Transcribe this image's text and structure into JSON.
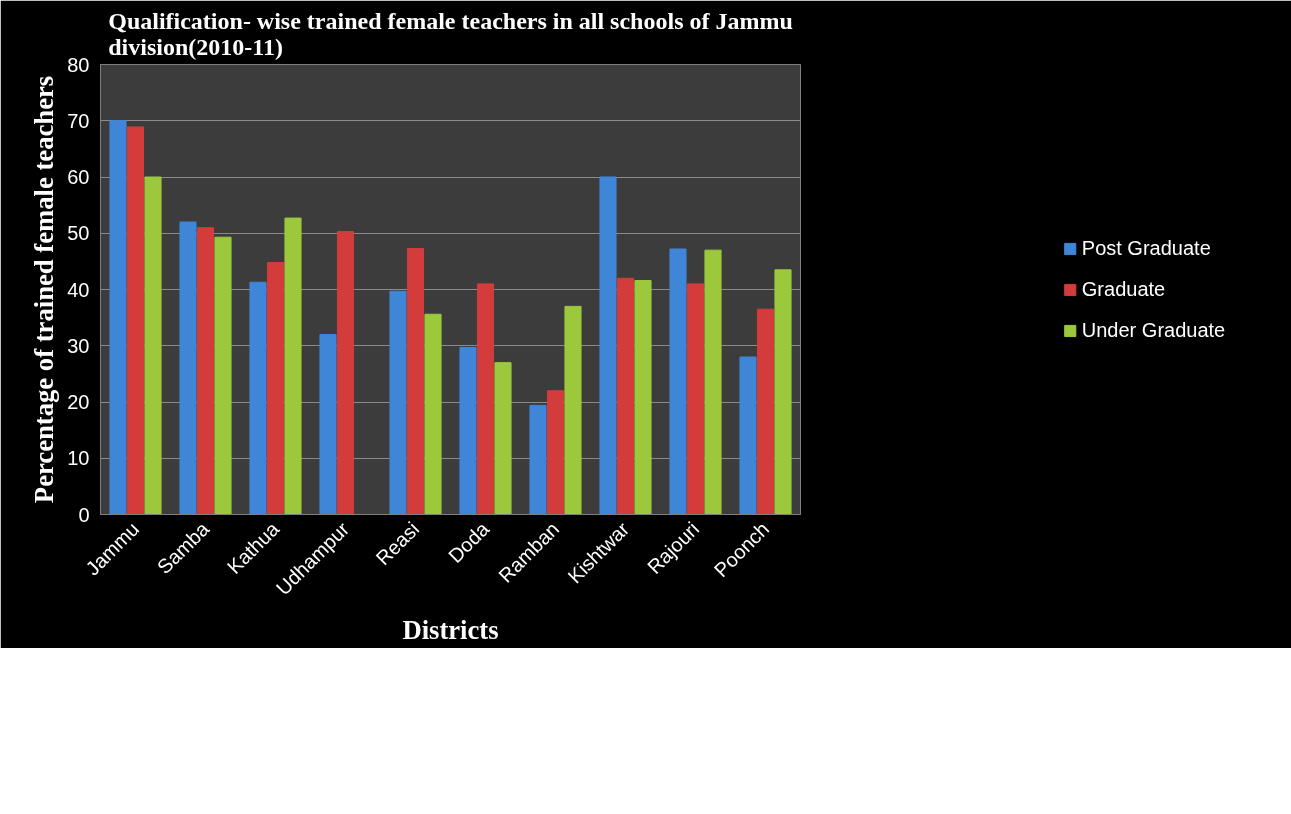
{
  "chart_data": {
    "type": "bar",
    "title": "Qualification- wise trained female teachers in all schools of Jammu division(2010-11)",
    "xlabel": "Districts",
    "ylabel": "Percentage of trained female teachers",
    "categories": [
      "Jammu",
      "Samba",
      "Kathua",
      "Udhampur",
      "Reasi",
      "Doda",
      "Ramban",
      "Kishtwar",
      "Rajouri",
      "Poonch"
    ],
    "series": [
      {
        "name": "Post Graduate",
        "color": "#3f86d8",
        "values": [
          70,
          52,
          41.3,
          32,
          39.7,
          29.7,
          19.4,
          60,
          47.2,
          28
        ]
      },
      {
        "name": "Graduate",
        "color": "#d43c3c",
        "values": [
          68.9,
          51,
          44.8,
          50.3,
          47.3,
          41,
          22,
          42,
          41,
          36.5
        ]
      },
      {
        "name": "Under Graduate",
        "color": "#9cc93c",
        "values": [
          60,
          49.3,
          52.7,
          null,
          35.6,
          27,
          37,
          41.6,
          47,
          43.5
        ]
      }
    ],
    "ylim": [
      0,
      80
    ],
    "yticks": [
      0,
      10,
      20,
      30,
      40,
      50,
      60,
      70,
      80
    ],
    "grid": "y",
    "legend": "right"
  }
}
